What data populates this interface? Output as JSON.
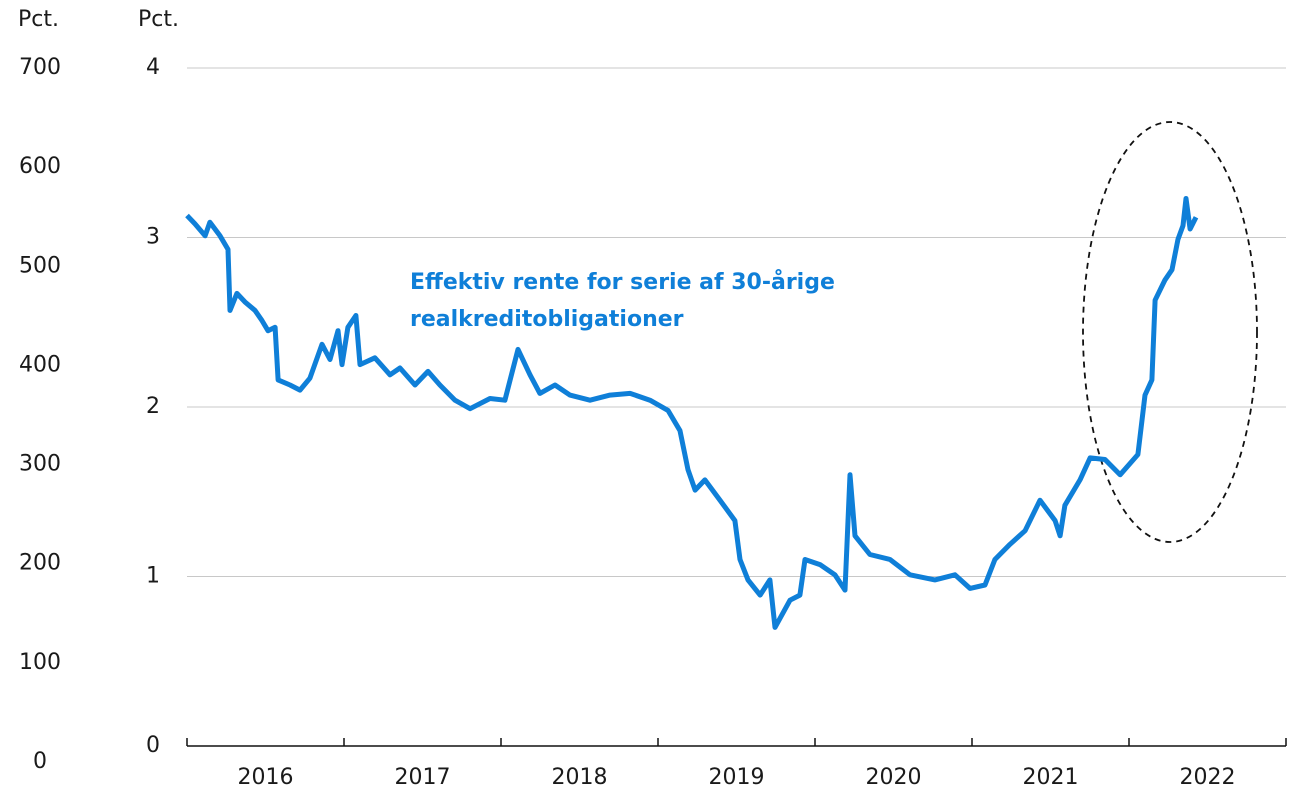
{
  "chart_data": {
    "type": "line",
    "y_label": "Pct.",
    "y2_label": "Pct.",
    "annotation": [
      "Effektiv rente for serie af 30-årige",
      "realkreditobligationer"
    ],
    "categories": [
      "2016",
      "2017",
      "2018",
      "2019",
      "2020",
      "2021",
      "2022"
    ],
    "xlim": [
      2016,
      2023
    ],
    "xticks": [
      2016,
      2017,
      2018,
      2019,
      2020,
      2021,
      2022,
      2023
    ],
    "ylim": [
      0,
      700
    ],
    "yticks": [
      0,
      100,
      200,
      300,
      400,
      500,
      600,
      700
    ],
    "y2lim": [
      0,
      4
    ],
    "y2ticks": [
      0,
      1,
      2,
      3,
      4
    ],
    "grid": true,
    "series": [
      {
        "name": "Effektiv rente",
        "color": "#0f7fd8",
        "axis": "y2",
        "x": [
          2016.0,
          2016.051,
          2016.115,
          2016.146,
          2016.21,
          2016.261,
          2016.274,
          2016.318,
          2016.369,
          2016.433,
          2016.478,
          2016.516,
          2016.561,
          2016.58,
          2016.656,
          2016.72,
          2016.783,
          2016.86,
          2016.911,
          2016.962,
          2016.987,
          2017.025,
          2017.076,
          2017.102,
          2017.197,
          2017.293,
          2017.357,
          2017.452,
          2017.535,
          2017.611,
          2017.707,
          2017.803,
          2017.93,
          2018.025,
          2018.108,
          2018.185,
          2018.248,
          2018.344,
          2018.439,
          2018.567,
          2018.694,
          2018.822,
          2018.949,
          2019.064,
          2019.14,
          2019.191,
          2019.236,
          2019.299,
          2019.395,
          2019.49,
          2019.522,
          2019.573,
          2019.65,
          2019.713,
          2019.745,
          2019.841,
          2019.904,
          2019.936,
          2020.032,
          2020.127,
          2020.191,
          2020.223,
          2020.255,
          2020.35,
          2020.478,
          2020.605,
          2020.764,
          2020.892,
          2020.987,
          2021.083,
          2021.146,
          2021.242,
          2021.338,
          2021.433,
          2021.529,
          2021.561,
          2021.592,
          2021.688,
          2021.752,
          2021.847,
          2021.943,
          2022.057,
          2022.102,
          2022.146,
          2022.166,
          2022.229,
          2022.274,
          2022.312,
          2022.344,
          2022.363,
          2022.389,
          2022.427
        ],
        "values": [
          3.13,
          3.08,
          3.01,
          3.09,
          3.01,
          2.93,
          2.57,
          2.67,
          2.62,
          2.57,
          2.51,
          2.45,
          2.47,
          2.16,
          2.13,
          2.1,
          2.17,
          2.37,
          2.28,
          2.45,
          2.25,
          2.47,
          2.54,
          2.25,
          2.29,
          2.19,
          2.23,
          2.13,
          2.21,
          2.13,
          2.04,
          1.99,
          2.05,
          2.04,
          2.34,
          2.19,
          2.08,
          2.13,
          2.07,
          2.04,
          2.07,
          2.08,
          2.04,
          1.98,
          1.86,
          1.63,
          1.51,
          1.57,
          1.45,
          1.33,
          1.1,
          0.98,
          0.89,
          0.98,
          0.7,
          0.86,
          0.89,
          1.1,
          1.07,
          1.01,
          0.92,
          1.6,
          1.24,
          1.13,
          1.1,
          1.01,
          0.98,
          1.01,
          0.93,
          0.95,
          1.1,
          1.19,
          1.27,
          1.45,
          1.33,
          1.24,
          1.42,
          1.57,
          1.7,
          1.69,
          1.6,
          1.72,
          2.07,
          2.16,
          2.63,
          2.75,
          2.81,
          2.99,
          3.07,
          3.23,
          3.05,
          3.12
        ]
      }
    ]
  }
}
